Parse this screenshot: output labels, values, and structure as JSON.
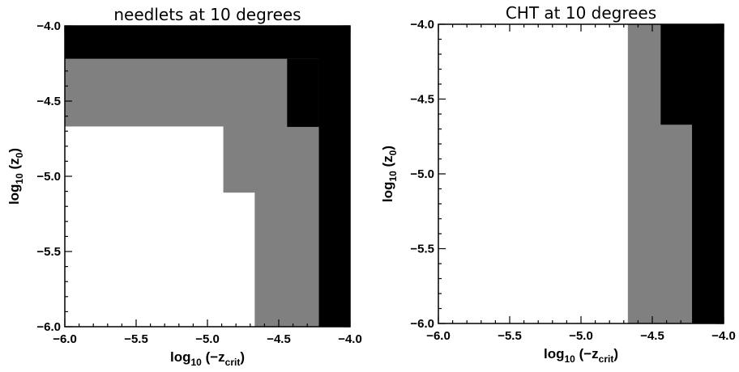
{
  "chart_data": [
    {
      "type": "heatmap",
      "title": "needlets at 10 degrees",
      "xlabel": "log10 (-z_crit)",
      "ylabel": "log10 (z0)",
      "xlabel_parts": {
        "pre": "log",
        "sub1": "10",
        "mid": " (−z",
        "sub2": "crit",
        "post": ")"
      },
      "ylabel_parts": {
        "pre": "log",
        "sub1": "10",
        "mid": " (z",
        "sub2": "0",
        "post": ")"
      },
      "xlim": [
        -6.0,
        -4.0
      ],
      "ylim": [
        -6.0,
        -4.0
      ],
      "xticks": [
        -6.0,
        -5.5,
        -5.0,
        -4.5,
        -4.0
      ],
      "yticks": [
        -6.0,
        -5.5,
        -5.0,
        -4.5,
        -4.0
      ],
      "xtick_labels": [
        "−6.0",
        "−5.5",
        "−5.0",
        "−4.5",
        "−4.0"
      ],
      "ytick_labels": [
        "−6.0",
        "−5.5",
        "−5.0",
        "−4.5",
        "−4.0"
      ],
      "colors": {
        "white": "#ffffff",
        "gray": "#808080",
        "black": "#000000"
      },
      "regions": [
        {
          "level": "black",
          "x0": -6.0,
          "x1": -4.0,
          "y0": -6.0,
          "y1": -4.0
        },
        {
          "level": "gray",
          "x0": -6.0,
          "x1": -4.22,
          "y0": -6.0,
          "y1": -4.22
        },
        {
          "level": "black",
          "x0": -4.44,
          "x1": -4.22,
          "y0": -4.67,
          "y1": -4.22
        },
        {
          "level": "white",
          "x0": -6.0,
          "x1": -4.67,
          "y0": -6.0,
          "y1": -5.11
        },
        {
          "level": "white",
          "x0": -6.0,
          "x1": -4.89,
          "y0": -5.11,
          "y1": -4.67
        }
      ]
    },
    {
      "type": "heatmap",
      "title": "CHT at 10 degrees",
      "xlabel": "log10 (-z_crit)",
      "ylabel": "log10 (z0)",
      "xlabel_parts": {
        "pre": "log",
        "sub1": "10",
        "mid": " (−z",
        "sub2": "crit",
        "post": ")"
      },
      "ylabel_parts": {
        "pre": "log",
        "sub1": "10",
        "mid": " (z",
        "sub2": "0",
        "post": ")"
      },
      "xlim": [
        -6.0,
        -4.0
      ],
      "ylim": [
        -6.0,
        -4.0
      ],
      "xticks": [
        -6.0,
        -5.5,
        -5.0,
        -4.5,
        -4.0
      ],
      "yticks": [
        -6.0,
        -5.5,
        -5.0,
        -4.5,
        -4.0
      ],
      "xtick_labels": [
        "−6.0",
        "−5.5",
        "−5.0",
        "−4.5",
        "−4.0"
      ],
      "ytick_labels": [
        "−6.0",
        "−5.5",
        "−5.0",
        "−4.5",
        "−4.0"
      ],
      "colors": {
        "white": "#ffffff",
        "gray": "#808080",
        "black": "#000000"
      },
      "regions": [
        {
          "level": "white",
          "x0": -6.0,
          "x1": -4.67,
          "y0": -6.0,
          "y1": -4.0
        },
        {
          "level": "gray",
          "x0": -4.67,
          "x1": -4.44,
          "y0": -6.0,
          "y1": -4.0
        },
        {
          "level": "gray",
          "x0": -4.44,
          "x1": -4.22,
          "y0": -6.0,
          "y1": -4.67
        },
        {
          "level": "black",
          "x0": -4.44,
          "x1": -4.22,
          "y0": -4.67,
          "y1": -4.0
        },
        {
          "level": "black",
          "x0": -4.22,
          "x1": -4.0,
          "y0": -6.0,
          "y1": -4.0
        }
      ]
    }
  ]
}
